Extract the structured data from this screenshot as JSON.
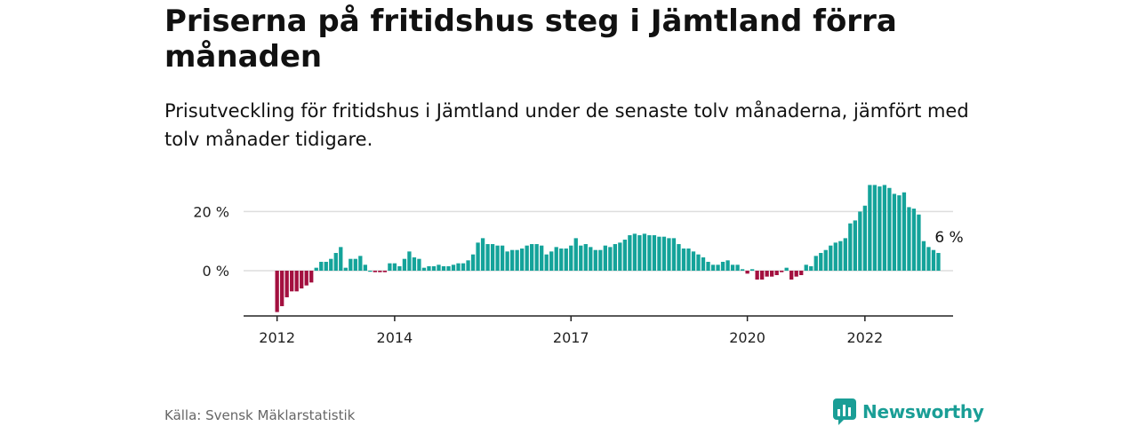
{
  "title": "Priserna på fritidshus steg i Jämtland förra månaden",
  "subtitle": "Prisutveckling för fritidshus i Jämtland under de senaste tolv månaderna, jämfört med tolv månader tidigare.",
  "source": "Källa: Svensk Mäklarstatistik",
  "brand": {
    "name": "Newsworthy",
    "icon": "newsworthy-logo-icon"
  },
  "colors": {
    "positive": "#14a39a",
    "negative": "#a3103f",
    "brand": "#1a9e96",
    "grid": "#dddddd",
    "axis": "#222222"
  },
  "chart_data": {
    "type": "bar",
    "ylabel": "",
    "xlabel": "",
    "ylim": [
      -15,
      30
    ],
    "y_ticks": [
      {
        "value": 0,
        "label": "0 %"
      },
      {
        "value": 20,
        "label": "20 %"
      }
    ],
    "x_ticks": [
      "2012",
      "2014",
      "2017",
      "2020",
      "2022"
    ],
    "grid": true,
    "legend": "none",
    "end_label": "6 %",
    "series": [
      {
        "start": "2012-01",
        "values": [
          -14,
          -12,
          -9,
          -7,
          -7,
          -6,
          -5,
          -4,
          1,
          3,
          3,
          4,
          6,
          8,
          1,
          4,
          4,
          5,
          2,
          0,
          -0.5,
          -0.5,
          -0.5,
          2.5,
          2.5,
          1.5,
          4,
          6.5,
          4.5,
          4,
          1,
          1.5,
          1.5,
          2,
          1.5,
          1.5,
          2,
          2.5,
          2.5,
          3.5,
          5.5,
          9.5,
          11,
          9,
          9,
          8.5,
          8.5,
          6.5,
          7,
          7,
          7.5,
          8.5,
          9,
          9,
          8.5,
          5.5,
          6.5,
          8,
          7.5,
          7.5,
          8.5,
          11,
          8.5,
          9,
          8,
          7,
          7,
          8.5,
          8,
          9,
          9.5,
          10.5,
          12,
          12.5,
          12,
          12.5,
          12,
          12,
          11.5,
          11.5,
          11,
          11,
          9,
          7.5,
          7.5,
          6.5,
          5.5,
          4.5,
          3,
          2,
          2,
          3,
          3.5,
          2,
          2,
          0.5,
          -1,
          0.5,
          -3,
          -3,
          -2,
          -2,
          -1.5,
          -0.5,
          1,
          -3,
          -2,
          -1.5,
          2,
          1.5,
          5,
          6,
          7,
          8.5,
          9.5,
          10,
          11,
          16,
          17,
          20,
          22,
          29,
          29,
          28.5,
          29,
          28,
          26,
          25.5,
          26.5,
          21.5,
          21,
          19,
          10,
          8,
          7,
          6
        ]
      }
    ]
  }
}
